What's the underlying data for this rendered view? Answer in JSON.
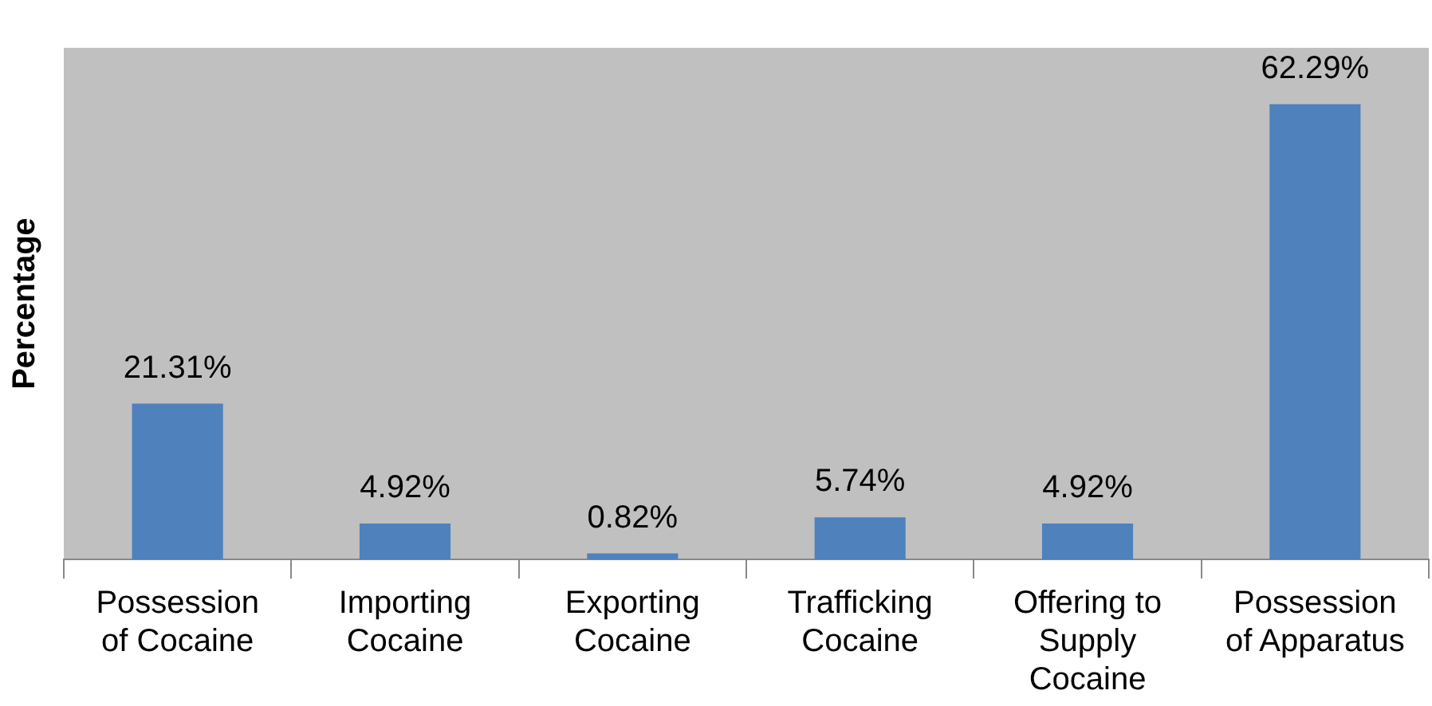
{
  "chart_data": {
    "type": "bar",
    "ylabel": "Percentage",
    "categories": [
      "Possession of Cocaine",
      "Importing Cocaine",
      "Exporting Cocaine",
      "Trafficking Cocaine",
      "Offering to Supply Cocaine",
      "Possession of Apparatus"
    ],
    "values": [
      21.31,
      4.92,
      0.82,
      5.74,
      4.92,
      62.29
    ],
    "value_labels": [
      "21.31%",
      "4.92%",
      "0.82%",
      "5.74%",
      "4.92%",
      "62.29%"
    ],
    "color": "#4f81bd",
    "tick_labels": "x",
    "legend": false
  }
}
